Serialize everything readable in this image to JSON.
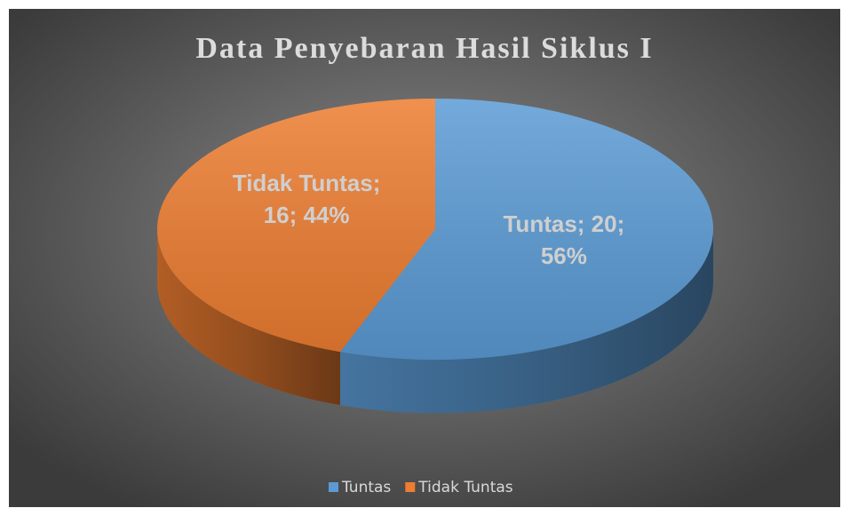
{
  "chart_data": {
    "type": "pie3d",
    "title": "Data Penyebaran Hasil Siklus I",
    "categories": [
      "Tuntas",
      "Tidak Tuntas"
    ],
    "values": [
      20,
      16
    ],
    "value_labels": [
      "Tuntas; 20; 56%",
      "Tidak Tuntas; 16; 44%"
    ],
    "colors": [
      "#5b9bd5",
      "#ed7d31"
    ],
    "legend": "bottom"
  }
}
